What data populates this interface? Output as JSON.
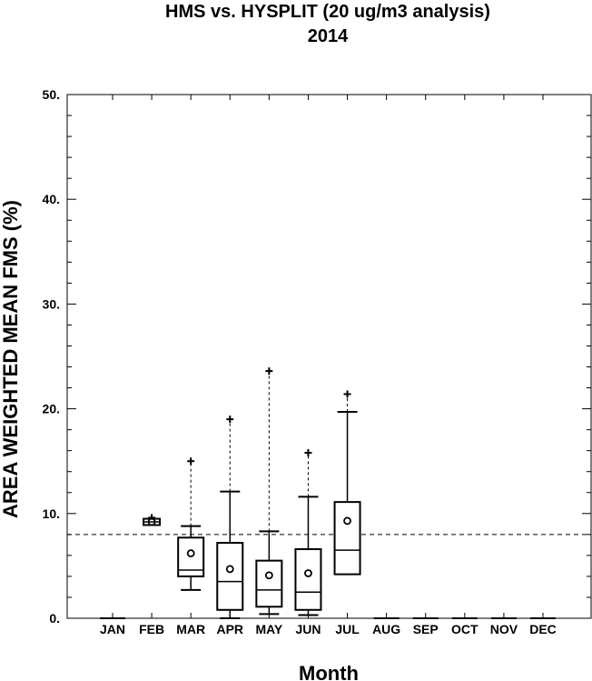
{
  "chart_data": {
    "type": "boxplot",
    "title": "HMS vs. HYSPLIT (20 ug/m3 analysis)",
    "subtitle": "2014",
    "xlabel": "Month",
    "ylabel": "AREA WEIGHTED MEAN FMS (%)",
    "ylim": [
      0,
      50
    ],
    "yticks": [
      0,
      10,
      20,
      30,
      40,
      50
    ],
    "ytick_labels": [
      "0.",
      "10.",
      "20.",
      "30.",
      "40.",
      "50."
    ],
    "reference_line": 8.0,
    "categories": [
      "JAN",
      "FEB",
      "MAR",
      "APR",
      "MAY",
      "JUN",
      "JUL",
      "AUG",
      "SEP",
      "OCT",
      "NOV",
      "DEC"
    ],
    "boxes": [
      {
        "month": "JAN",
        "min": 0,
        "q1": 0,
        "median": 0,
        "q3": 0,
        "whisker_high": 0,
        "max": 0,
        "mean": null
      },
      {
        "month": "FEB",
        "min": 8.9,
        "q1": 8.9,
        "median": 9.2,
        "q3": 9.5,
        "whisker_high": 9.5,
        "max": 9.6,
        "mean": 9.2
      },
      {
        "month": "MAR",
        "min": 2.7,
        "q1": 4.0,
        "median": 4.6,
        "q3": 7.7,
        "whisker_high": 8.8,
        "max": 15.0,
        "mean": 6.2
      },
      {
        "month": "APR",
        "min": 0.0,
        "q1": 0.8,
        "median": 3.5,
        "q3": 7.2,
        "whisker_high": 12.1,
        "max": 19.0,
        "mean": 4.7
      },
      {
        "month": "MAY",
        "min": 0.4,
        "q1": 1.1,
        "median": 2.7,
        "q3": 5.5,
        "whisker_high": 8.3,
        "max": 23.6,
        "mean": 4.1
      },
      {
        "month": "JUN",
        "min": 0.3,
        "q1": 0.8,
        "median": 2.5,
        "q3": 6.6,
        "whisker_high": 11.6,
        "max": 15.8,
        "mean": 4.3
      },
      {
        "month": "JUL",
        "min": 4.2,
        "q1": 4.2,
        "median": 6.5,
        "q3": 11.1,
        "whisker_high": 19.7,
        "max": 21.4,
        "mean": 9.3
      },
      {
        "month": "AUG",
        "min": 0,
        "q1": 0,
        "median": 0,
        "q3": 0,
        "whisker_high": 0,
        "max": 0,
        "mean": null
      },
      {
        "month": "SEP",
        "min": 0,
        "q1": 0,
        "median": 0,
        "q3": 0,
        "whisker_high": 0,
        "max": 0,
        "mean": null
      },
      {
        "month": "OCT",
        "min": 0,
        "q1": 0,
        "median": 0,
        "q3": 0,
        "whisker_high": 0,
        "max": 0,
        "mean": null
      },
      {
        "month": "NOV",
        "min": 0,
        "q1": 0,
        "median": 0,
        "q3": 0,
        "whisker_high": 0,
        "max": 0,
        "mean": null
      },
      {
        "month": "DEC",
        "min": 0,
        "q1": 0,
        "median": 0,
        "q3": 0,
        "whisker_high": 0,
        "max": 0,
        "mean": null
      }
    ],
    "grid": false,
    "legend": "none"
  }
}
